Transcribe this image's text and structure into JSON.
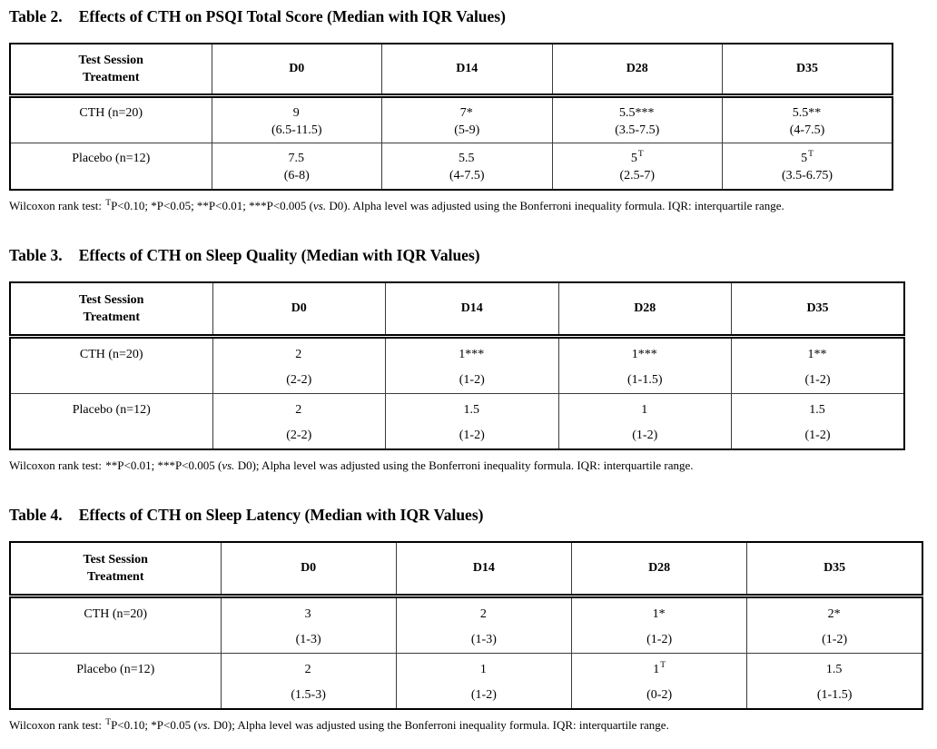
{
  "colors": {
    "text": "#000000",
    "border": "#000000",
    "background": "#ffffff"
  },
  "tables": [
    {
      "label": "Table 2.",
      "title": "Effects of CTH on PSQI Total Score (Median with IQR Values)",
      "header": {
        "row_label_line1": "Test Session",
        "row_label_line2": "Treatment",
        "columns": [
          "D0",
          "D14",
          "D28",
          "D35"
        ]
      },
      "rows": [
        {
          "label": "CTH (n=20)",
          "cells": [
            {
              "main": "9",
              "sup": "",
              "iqr": "(6.5-11.5)"
            },
            {
              "main": "7*",
              "sup": "",
              "iqr": "(5-9)"
            },
            {
              "main": "5.5***",
              "sup": "",
              "iqr": "(3.5-7.5)"
            },
            {
              "main": "5.5**",
              "sup": "",
              "iqr": "(4-7.5)"
            }
          ]
        },
        {
          "label": "Placebo (n=12)",
          "cells": [
            {
              "main": "7.5",
              "sup": "",
              "iqr": "(6-8)"
            },
            {
              "main": "5.5",
              "sup": "",
              "iqr": "(4-7.5)"
            },
            {
              "main": "5",
              "sup": "T",
              "iqr": "(2.5-7)"
            },
            {
              "main": "5",
              "sup": "T",
              "iqr": "(3.5-6.75)"
            }
          ]
        }
      ],
      "footnote": {
        "p1": "Wilcoxon rank test: ",
        "sup": "T",
        "p2": "P<0.10; *P<0.05; **P<0.01; ***P<0.005 (",
        "vs": "vs.",
        "p3": " D0). Alpha level was adjusted using the Bonferroni inequality formula. IQR: interquartile range."
      }
    },
    {
      "label": "Table 3.",
      "title": "Effects of CTH on Sleep Quality (Median with IQR Values)",
      "header": {
        "row_label_line1": "Test Session",
        "row_label_line2": "Treatment",
        "columns": [
          "D0",
          "D14",
          "D28",
          "D35"
        ]
      },
      "rows": [
        {
          "label": "CTH (n=20)",
          "cells": [
            {
              "main": "2",
              "sup": "",
              "iqr": "(2-2)"
            },
            {
              "main": "1***",
              "sup": "",
              "iqr": "(1-2)"
            },
            {
              "main": "1***",
              "sup": "",
              "iqr": "(1-1.5)"
            },
            {
              "main": "1**",
              "sup": "",
              "iqr": "(1-2)"
            }
          ]
        },
        {
          "label": "Placebo (n=12)",
          "cells": [
            {
              "main": "2",
              "sup": "",
              "iqr": "(2-2)"
            },
            {
              "main": "1.5",
              "sup": "",
              "iqr": "(1-2)"
            },
            {
              "main": "1",
              "sup": "",
              "iqr": "(1-2)"
            },
            {
              "main": "1.5",
              "sup": "",
              "iqr": "(1-2)"
            }
          ]
        }
      ],
      "footnote": {
        "p1": "Wilcoxon rank test: ",
        "sup": "",
        "p2": "**P<0.01; ***P<0.005 (",
        "vs": "vs.",
        "p3": " D0); Alpha level was adjusted using the Bonferroni inequality formula. IQR: interquartile range."
      }
    },
    {
      "label": "Table 4.",
      "title": "Effects of CTH on Sleep Latency (Median with IQR Values)",
      "header": {
        "row_label_line1": "Test Session",
        "row_label_line2": "Treatment",
        "columns": [
          "D0",
          "D14",
          "D28",
          "D35"
        ]
      },
      "rows": [
        {
          "label": "CTH (n=20)",
          "cells": [
            {
              "main": "3",
              "sup": "",
              "iqr": "(1-3)"
            },
            {
              "main": "2",
              "sup": "",
              "iqr": "(1-3)"
            },
            {
              "main": "1*",
              "sup": "",
              "iqr": "(1-2)"
            },
            {
              "main": "2*",
              "sup": "",
              "iqr": "(1-2)"
            }
          ]
        },
        {
          "label": "Placebo (n=12)",
          "cells": [
            {
              "main": "2",
              "sup": "",
              "iqr": "(1.5-3)"
            },
            {
              "main": "1",
              "sup": "",
              "iqr": "(1-2)"
            },
            {
              "main": "1",
              "sup": "T",
              "iqr": "(0-2)"
            },
            {
              "main": "1.5",
              "sup": "",
              "iqr": "(1-1.5)"
            }
          ]
        }
      ],
      "footnote": {
        "p1": "Wilcoxon rank test: ",
        "sup": "T",
        "p2": "P<0.10; *P<0.05 (",
        "vs": "vs.",
        "p3": " D0); Alpha level was adjusted using the Bonferroni inequality formula. IQR: interquartile range."
      }
    }
  ]
}
